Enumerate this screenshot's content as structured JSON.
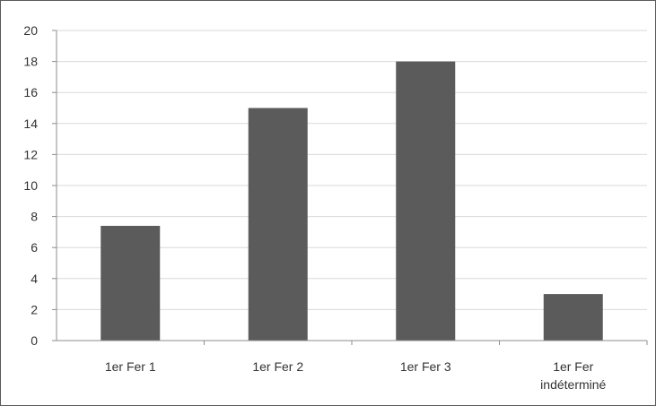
{
  "chart_data": {
    "type": "bar",
    "categories": [
      [
        "1er Fer 1"
      ],
      [
        "1er Fer 2"
      ],
      [
        "1er Fer 3"
      ],
      [
        "1er Fer",
        "indéterminé"
      ]
    ],
    "values": [
      7.4,
      15,
      18,
      3
    ],
    "ylim": [
      0,
      20
    ],
    "yticks": [
      0,
      2,
      4,
      6,
      8,
      10,
      12,
      14,
      16,
      18,
      20
    ],
    "grid": true,
    "legend": "none",
    "title": "",
    "xlabel": "",
    "ylabel": "",
    "colors": {
      "bar": "#5b5b5b",
      "grid": "#d9d9d9",
      "axis": "#8c8c8c"
    }
  }
}
